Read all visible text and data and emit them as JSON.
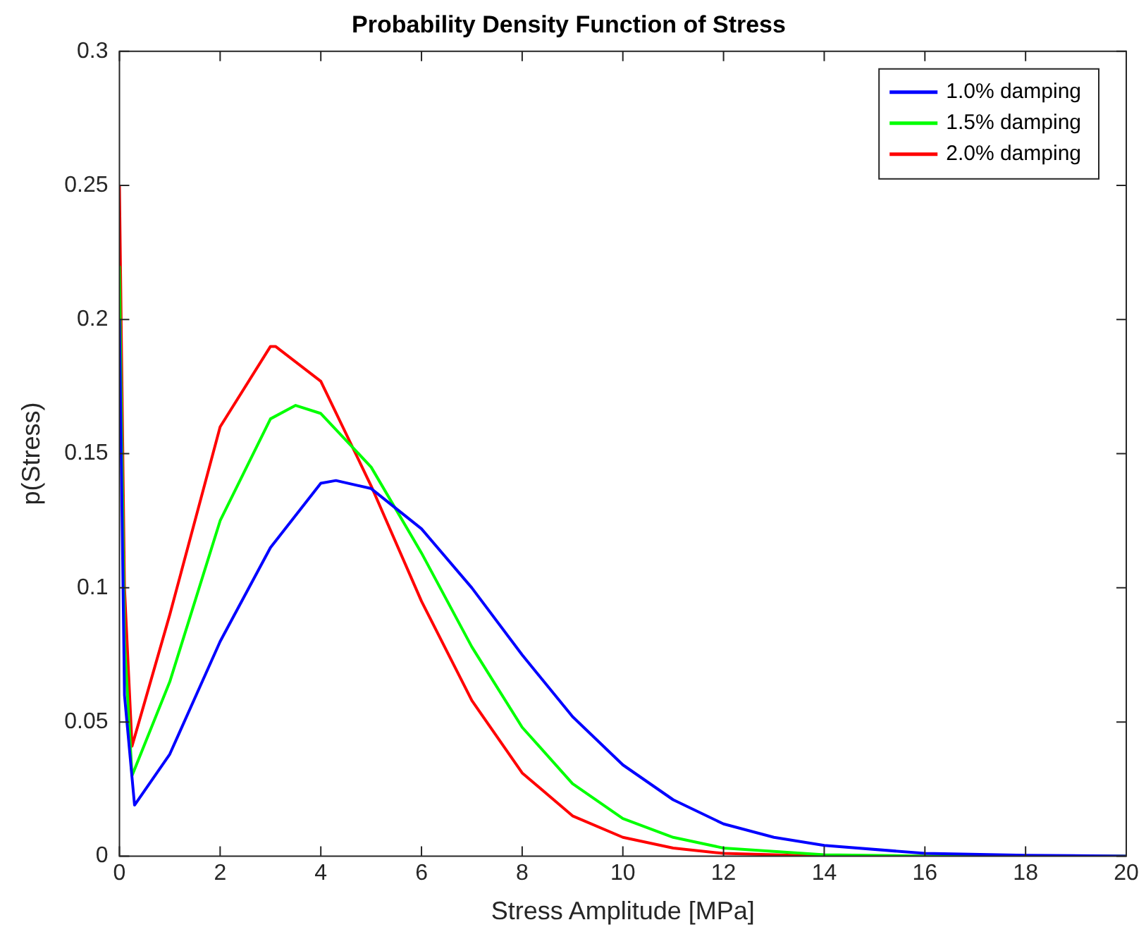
{
  "chart_data": {
    "type": "line",
    "title": "Probability Density Function of Stress",
    "xlabel": "Stress Amplitude [MPa]",
    "ylabel": "p(Stress)",
    "xlim": [
      0,
      20
    ],
    "xticks": [
      0,
      2,
      4,
      6,
      8,
      10,
      12,
      14,
      16,
      18,
      20
    ],
    "ylim": [
      0,
      0.3
    ],
    "yticks": [
      0,
      0.05,
      0.1,
      0.15,
      0.2,
      0.25,
      0.3
    ],
    "grid": false,
    "legend": "top right",
    "marker": "none",
    "line_style": "solid",
    "series": [
      {
        "name": "1.0% damping",
        "color": "#0000ff",
        "x": [
          0,
          0.1,
          0.3,
          1,
          2,
          3,
          4,
          4.3,
          5,
          6,
          7,
          8,
          9,
          10,
          11,
          12,
          13,
          14,
          16,
          18,
          20
        ],
        "values": [
          0.2,
          0.06,
          0.019,
          0.038,
          0.08,
          0.115,
          0.139,
          0.14,
          0.137,
          0.122,
          0.1,
          0.075,
          0.052,
          0.034,
          0.021,
          0.012,
          0.007,
          0.004,
          0.001,
          0.0003,
          0
        ]
      },
      {
        "name": "1.5% damping",
        "color": "#00ff00",
        "x": [
          0,
          0.1,
          0.25,
          1,
          2,
          3,
          3.5,
          4,
          5,
          6,
          7,
          8,
          9,
          10,
          11,
          12,
          14,
          16,
          20
        ],
        "values": [
          0.22,
          0.08,
          0.03,
          0.065,
          0.125,
          0.163,
          0.168,
          0.165,
          0.145,
          0.113,
          0.078,
          0.048,
          0.027,
          0.014,
          0.007,
          0.003,
          0.0005,
          0,
          0
        ]
      },
      {
        "name": "2.0% damping",
        "color": "#ff0000",
        "x": [
          0,
          0.1,
          0.25,
          1,
          2,
          3,
          3.1,
          4,
          5,
          6,
          7,
          8,
          9,
          10,
          11,
          12,
          14,
          20
        ],
        "values": [
          0.25,
          0.1,
          0.041,
          0.09,
          0.16,
          0.19,
          0.19,
          0.177,
          0.138,
          0.095,
          0.058,
          0.031,
          0.015,
          0.007,
          0.003,
          0.001,
          0,
          0
        ]
      }
    ]
  }
}
